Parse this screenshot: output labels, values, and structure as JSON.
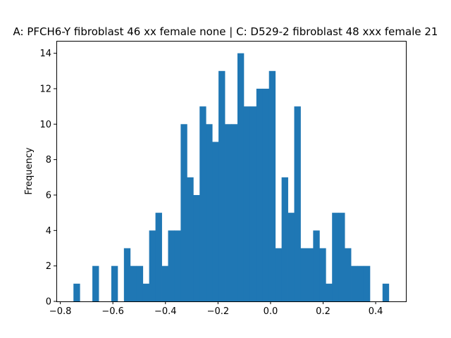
{
  "chart_data": {
    "type": "bar",
    "title": "A: PFCH6-Y fibroblast 46 xx female none | C: D529-2 fibroblast 48 xxx female 21",
    "xlabel": "",
    "ylabel": "Frequency",
    "xlim": [
      -0.815,
      0.515
    ],
    "ylim": [
      0,
      14.7
    ],
    "xticks": [
      -0.8,
      -0.6,
      -0.4,
      -0.2,
      0.0,
      0.2,
      0.4
    ],
    "xtick_labels": [
      "−0.8",
      "−0.6",
      "−0.4",
      "−0.2",
      "0.0",
      "0.2",
      "0.4"
    ],
    "yticks": [
      0,
      2,
      4,
      6,
      8,
      10,
      12,
      14
    ],
    "ytick_labels": [
      "0",
      "2",
      "4",
      "6",
      "8",
      "10",
      "12",
      "14"
    ],
    "bar_color": "#1f77b4",
    "grid": false,
    "bin_start": -0.75,
    "bin_width": 0.024,
    "values": [
      1,
      0,
      0,
      2,
      0,
      0,
      2,
      0,
      3,
      2,
      2,
      1,
      4,
      5,
      2,
      4,
      4,
      10,
      7,
      6,
      11,
      10,
      9,
      13,
      10,
      10,
      14,
      11,
      11,
      12,
      12,
      13,
      3,
      7,
      5,
      11,
      3,
      3,
      4,
      3,
      1,
      5,
      5,
      3,
      2,
      2,
      2,
      0,
      0,
      1
    ]
  }
}
